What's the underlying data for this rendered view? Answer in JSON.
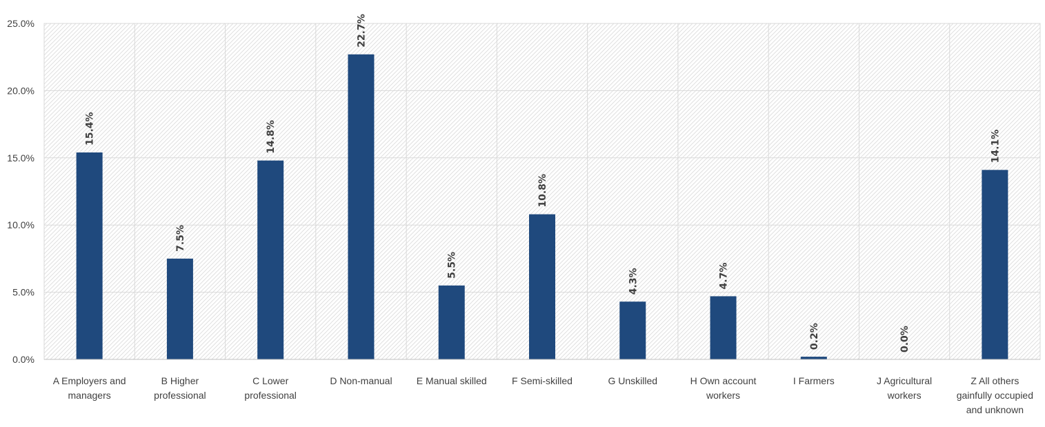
{
  "chart_data": {
    "type": "bar",
    "title": "",
    "xlabel": "",
    "ylabel": "",
    "categories": [
      "A Employers and managers",
      "B Higher professional",
      "C Lower professional",
      "D Non-manual",
      "E Manual skilled",
      "F Semi-skilled",
      "G Unskilled",
      "H Own account workers",
      "I Farmers",
      "J Agricultural workers",
      "Z All others gainfully occupied and unknown"
    ],
    "category_label_lines": [
      [
        "A Employers and",
        "managers"
      ],
      [
        "B Higher",
        "professional"
      ],
      [
        "C Lower",
        "professional"
      ],
      [
        "D Non-manual"
      ],
      [
        "E Manual skilled"
      ],
      [
        "F Semi-skilled"
      ],
      [
        "G Unskilled"
      ],
      [
        "H Own account",
        "workers"
      ],
      [
        "I Farmers"
      ],
      [
        "J Agricultural",
        "workers"
      ],
      [
        "Z All others",
        "gainfully occupied",
        "and unknown"
      ]
    ],
    "values": [
      15.4,
      7.5,
      14.8,
      22.7,
      5.5,
      10.8,
      4.3,
      4.7,
      0.2,
      0.0,
      14.1
    ],
    "data_labels": [
      "15.4%",
      "7.5%",
      "14.8%",
      "22.7%",
      "5.5%",
      "10.8%",
      "4.3%",
      "4.7%",
      "0.2%",
      "0.0%",
      "14.1%"
    ],
    "ylim": [
      0,
      25
    ],
    "yticks": [
      0,
      5,
      10,
      15,
      20,
      25
    ],
    "ytick_labels": [
      "0.0%",
      "5.0%",
      "10.0%",
      "15.0%",
      "20.0%",
      "25.0%"
    ],
    "grid": true,
    "legend": "none",
    "colors": {
      "bar": "#1F497D",
      "grid": "#D9D9D9",
      "hatch": "#E0E0E0",
      "text": "#404040"
    }
  }
}
